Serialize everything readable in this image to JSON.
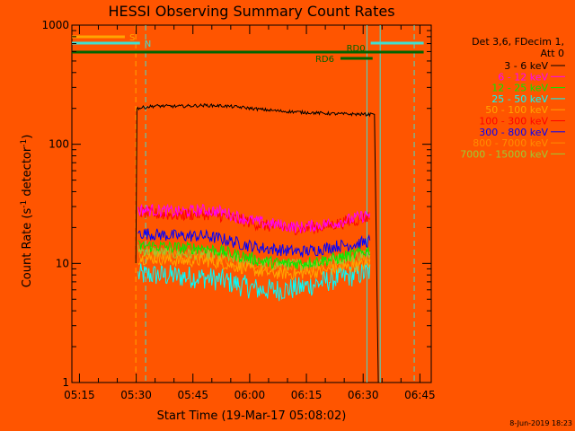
{
  "chart_data": {
    "type": "line",
    "title": "HESSI Observing Summary Count Rates",
    "xlabel": "Start Time (19-Mar-17 05:08:02)",
    "ylabel_main": "Count Rate (s",
    "ylabel_sup1": "-1",
    "ylabel_mid": " detector",
    "ylabel_sup2": "-1",
    "ylabel_end": ")",
    "y_scale": "log",
    "ylim": [
      1,
      1000
    ],
    "xlim_minutes": [
      5.0,
      100.0
    ],
    "x_ticks": [
      "05:15",
      "05:30",
      "05:45",
      "06:00",
      "06:15",
      "06:30",
      "06:45"
    ],
    "y_ticks": [
      "1",
      "10",
      "100",
      "1000"
    ],
    "legend_header": [
      "Det 3,6, FDecim 1,",
      "Att 0"
    ],
    "background": "#ff5500",
    "series": [
      {
        "name": "3 - 6 keV",
        "color": "#000000",
        "x": [
          21.9,
          22.2,
          27,
          33,
          40,
          45,
          50,
          55,
          60,
          65,
          70,
          75,
          80,
          84,
          85,
          86
        ],
        "y": [
          10,
          200,
          210,
          208,
          212,
          210,
          204,
          196,
          190,
          186,
          183,
          180,
          179,
          178,
          178,
          1
        ]
      },
      {
        "name": "6 - 12 keV",
        "color": "#ff00ff",
        "x": [
          22.5,
          27,
          33,
          40,
          45,
          50,
          55,
          60,
          65,
          70,
          75,
          80,
          84
        ],
        "y": [
          28,
          28,
          27,
          28,
          27,
          24,
          22,
          21,
          20,
          21,
          22,
          24,
          26
        ]
      },
      {
        "name": "12 - 25 keV",
        "color": "#00ee00",
        "x": [
          22.5,
          27,
          33,
          40,
          45,
          50,
          55,
          60,
          65,
          70,
          75,
          80,
          84
        ],
        "y": [
          14,
          14,
          13.5,
          13.5,
          12.5,
          11.5,
          10.5,
          10,
          10,
          10.5,
          11,
          12,
          13
        ]
      },
      {
        "name": "25 - 50 keV",
        "color": "#00ffff",
        "x": [
          22.5,
          27,
          33,
          40,
          45,
          50,
          55,
          60,
          65,
          70,
          75,
          80,
          84
        ],
        "y": [
          8,
          8,
          7.8,
          7.6,
          7.2,
          6.5,
          6,
          6,
          6.2,
          6.8,
          7.5,
          8,
          8.5
        ]
      },
      {
        "name": "50 - 100 keV",
        "color": "#ffa500",
        "x": [
          22.5,
          27,
          33,
          40,
          45,
          50,
          55,
          60,
          65,
          70,
          75,
          80,
          84
        ],
        "y": [
          11,
          11,
          10.5,
          10.5,
          10,
          9.2,
          8.5,
          8.2,
          8.2,
          8.5,
          9,
          9.5,
          10
        ]
      },
      {
        "name": "100 - 300 keV",
        "color": "#ff0000",
        "x": [
          22.5,
          27,
          33,
          40,
          45,
          50,
          55,
          60,
          65,
          70,
          75,
          80,
          84
        ],
        "y": [
          27,
          26,
          25.5,
          26,
          25,
          23,
          21,
          20,
          19.5,
          20,
          21.5,
          23,
          25
        ]
      },
      {
        "name": "300 - 800 keV",
        "color": "#0000ff",
        "x": [
          22.5,
          27,
          33,
          40,
          45,
          50,
          55,
          60,
          65,
          70,
          75,
          80,
          84
        ],
        "y": [
          18,
          17.5,
          17,
          17,
          16,
          14.5,
          13.5,
          13,
          12.5,
          13,
          14,
          14.5,
          15.5
        ]
      },
      {
        "name": "800 - 7000 keV",
        "color": "#ff8c00",
        "x": [
          22.5,
          27,
          33,
          40,
          45,
          50,
          55,
          60,
          65,
          70,
          75,
          80,
          84
        ],
        "y": [
          12,
          12,
          11.5,
          11.5,
          11,
          10,
          9.5,
          9.2,
          9,
          9.5,
          10,
          10.5,
          11
        ]
      },
      {
        "name": "7000 - 15000 keV",
        "color": "#9acd32",
        "x": [
          22.5,
          27,
          33,
          40,
          45,
          50,
          55,
          60,
          65,
          70,
          75,
          80,
          84
        ],
        "y": [
          13,
          12.5,
          12,
          12,
          11.5,
          10.8,
          10,
          9.8,
          9.8,
          10.2,
          10.8,
          11.5,
          12.5
        ]
      }
    ],
    "vertical_markers": [
      {
        "x": 21.9,
        "color": "#ffa500",
        "style": "dashed"
      },
      {
        "x": 24.5,
        "color": "#40e0d0",
        "style": "dashed"
      },
      {
        "x": 83.0,
        "color": "#40e0d0",
        "style": "solid"
      },
      {
        "x": 86.5,
        "color": "#40e0d0",
        "style": "solid"
      },
      {
        "x": 95.5,
        "color": "#40e0d0",
        "style": "dashed"
      }
    ],
    "flag_bars": [
      {
        "label": "S",
        "color": "#ffa500",
        "x": [
          5.0,
          19.0
        ],
        "level": 1
      },
      {
        "label": "N",
        "color": "#40e0d0",
        "x": [
          5.0,
          23.0
        ],
        "level": 2
      },
      {
        "label": "",
        "color": "#40e0d0",
        "x": [
          84.0,
          98.0
        ],
        "level": 2
      },
      {
        "label": "RD0",
        "color": "#006400",
        "x": [
          5.0,
          98.0
        ],
        "level": 3
      },
      {
        "label": "RD6",
        "color": "#006400",
        "x": [
          76.0,
          84.5
        ],
        "level": 4
      }
    ]
  },
  "footer": {
    "timestamp": "8-Jun-2019 18:23"
  }
}
